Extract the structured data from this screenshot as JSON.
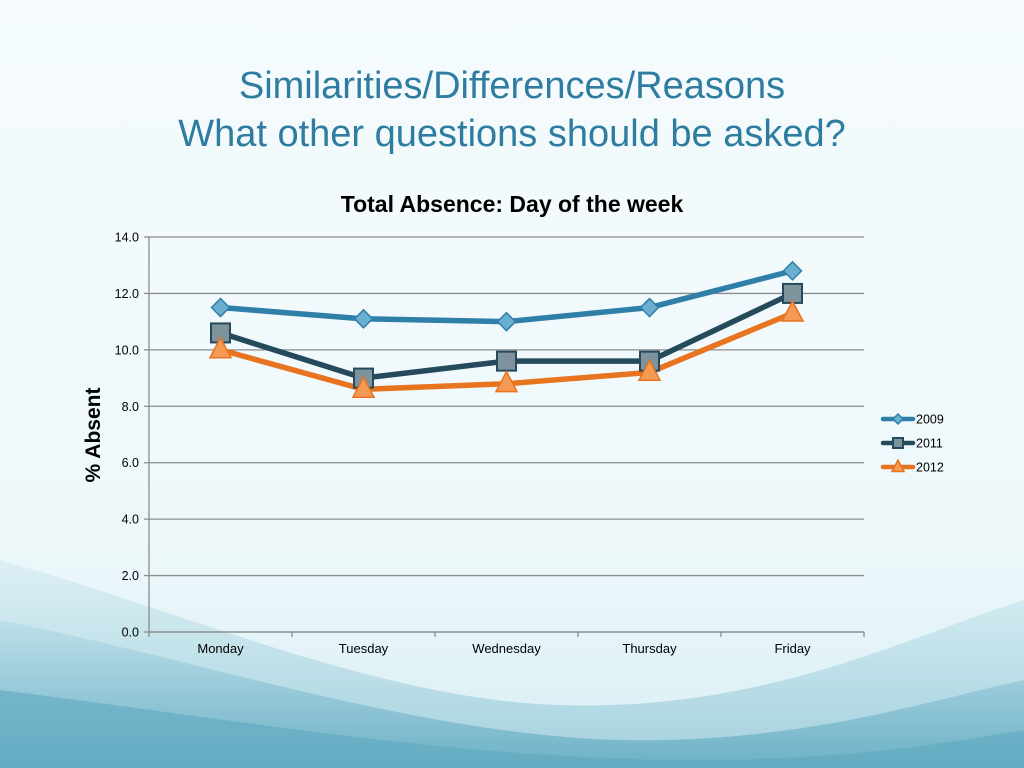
{
  "slide": {
    "title_line1": "Similarities/Differences/Reasons",
    "title_line2": "What other questions should be asked?"
  },
  "colors": {
    "series_2009": "#2f7fa8",
    "series_2011": "#244a5c",
    "series_2012": "#e8741f",
    "title": "#2e7da0",
    "grid": "#8c8c8c"
  },
  "chart_data": {
    "type": "line",
    "title": "Total Absence: Day of the week",
    "xlabel": "",
    "ylabel": "% Absent",
    "categories": [
      "Monday",
      "Tuesday",
      "Wednesday",
      "Thursday",
      "Friday"
    ],
    "ylim": [
      0,
      14
    ],
    "yticks": [
      "0.0",
      "2.0",
      "4.0",
      "6.0",
      "8.0",
      "10.0",
      "12.0",
      "14.0"
    ],
    "grid": true,
    "legend_position": "right",
    "series": [
      {
        "name": "2009",
        "marker": "diamond",
        "values": [
          11.5,
          11.1,
          11.0,
          11.5,
          12.8
        ]
      },
      {
        "name": "2011",
        "marker": "square",
        "values": [
          10.6,
          9.0,
          9.6,
          9.6,
          12.0
        ]
      },
      {
        "name": "2012",
        "marker": "triangle",
        "values": [
          10.0,
          8.6,
          8.8,
          9.2,
          11.3
        ]
      }
    ]
  }
}
